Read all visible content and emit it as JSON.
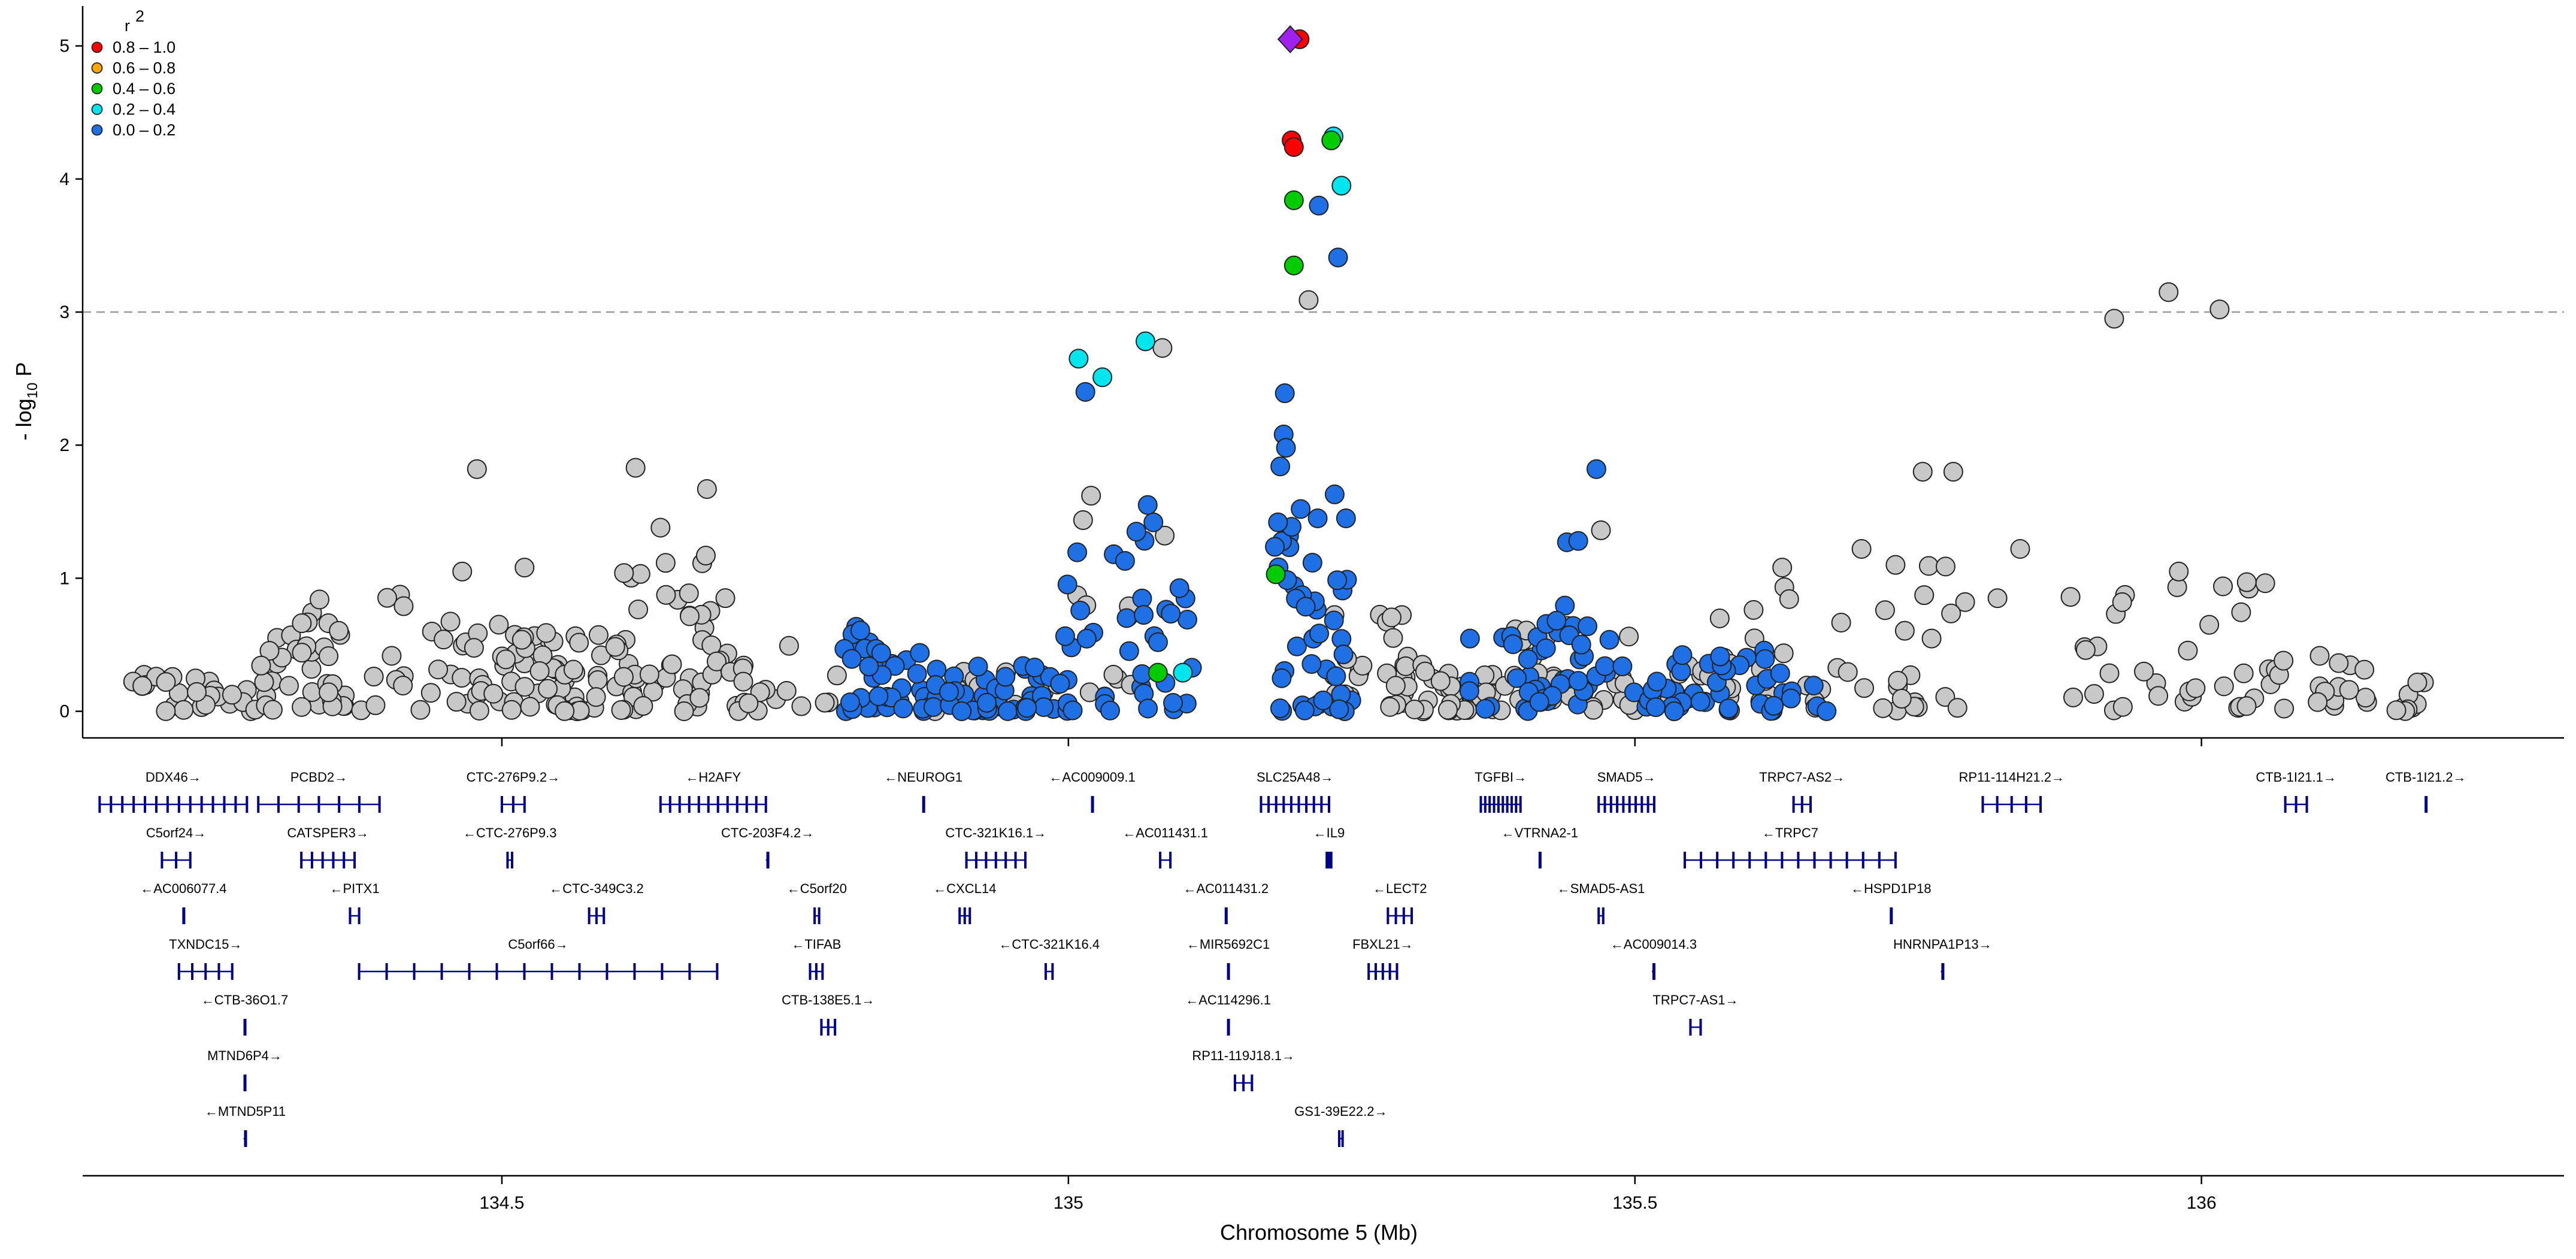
{
  "chart_data": {
    "type": "scatter",
    "title": "",
    "xlabel": "Chromosome 5 (Mb)",
    "ylabel": "- log10 P",
    "ylabel_main": "- log",
    "ylabel_sub": "10",
    "ylabel_end": " P",
    "xlim": [
      134.13,
      136.32
    ],
    "ylim": [
      -0.2,
      5.3
    ],
    "xticks": [
      134.5,
      135,
      135.5,
      136
    ],
    "xtick_labels": [
      "134.5",
      "135",
      "135.5",
      "136"
    ],
    "yticks": [
      0,
      1,
      2,
      3,
      4,
      5
    ],
    "ytick_labels": [
      "0",
      "1",
      "2",
      "3",
      "4",
      "5"
    ],
    "threshold": 3,
    "legend": {
      "title": "r",
      "title_sup": "2",
      "items": [
        {
          "label": "0.8 – 1.0",
          "color": "#ff0000"
        },
        {
          "label": "0.6 – 0.8",
          "color": "#ffa500"
        },
        {
          "label": "0.4 – 0.6",
          "color": "#00cc00"
        },
        {
          "label": "0.2 – 0.4",
          "color": "#00e5ee"
        },
        {
          "label": "0.0 – 0.2",
          "color": "#1f6fe5"
        }
      ]
    },
    "colors": {
      "gray": "#c8c8c8",
      "blue": "#1f6fe5",
      "cyan": "#00e5ee",
      "green": "#00cc00",
      "red": "#ff0000",
      "lead": "#a020f0",
      "gene": "#00008b"
    },
    "lead_snp": {
      "x": 135.2,
      "y": 5.05
    },
    "highlighted_points": [
      {
        "x": 135.204,
        "y": 5.05,
        "group": "red"
      },
      {
        "x": 135.197,
        "y": 4.29,
        "group": "red"
      },
      {
        "x": 135.199,
        "y": 4.24,
        "group": "red"
      },
      {
        "x": 135.234,
        "y": 4.32,
        "group": "cyan"
      },
      {
        "x": 135.232,
        "y": 4.29,
        "group": "green"
      },
      {
        "x": 135.241,
        "y": 3.95,
        "group": "cyan"
      },
      {
        "x": 135.199,
        "y": 3.84,
        "group": "green"
      },
      {
        "x": 135.221,
        "y": 3.8,
        "group": "blue"
      },
      {
        "x": 135.238,
        "y": 3.41,
        "group": "blue"
      },
      {
        "x": 135.199,
        "y": 3.35,
        "group": "green"
      },
      {
        "x": 135.212,
        "y": 3.09,
        "group": "gray"
      },
      {
        "x": 135.009,
        "y": 2.65,
        "group": "cyan"
      },
      {
        "x": 135.015,
        "y": 2.4,
        "group": "blue"
      },
      {
        "x": 135.03,
        "y": 2.51,
        "group": "cyan"
      },
      {
        "x": 135.068,
        "y": 2.78,
        "group": "cyan"
      },
      {
        "x": 135.083,
        "y": 2.73,
        "group": "gray"
      },
      {
        "x": 135.191,
        "y": 2.39,
        "group": "blue"
      },
      {
        "x": 135.19,
        "y": 2.08,
        "group": "blue"
      },
      {
        "x": 135.192,
        "y": 1.98,
        "group": "blue"
      },
      {
        "x": 135.187,
        "y": 1.84,
        "group": "blue"
      },
      {
        "x": 135.183,
        "y": 1.03,
        "group": "green"
      },
      {
        "x": 135.079,
        "y": 0.29,
        "group": "green"
      },
      {
        "x": 135.101,
        "y": 0.29,
        "group": "cyan"
      },
      {
        "x": 134.478,
        "y": 1.82,
        "group": "gray"
      },
      {
        "x": 134.618,
        "y": 1.83,
        "group": "gray"
      },
      {
        "x": 134.681,
        "y": 1.67,
        "group": "gray"
      },
      {
        "x": 135.466,
        "y": 1.82,
        "group": "blue"
      },
      {
        "x": 135.754,
        "y": 1.8,
        "group": "gray"
      },
      {
        "x": 135.781,
        "y": 1.8,
        "group": "gray"
      },
      {
        "x": 135.923,
        "y": 2.95,
        "group": "gray"
      },
      {
        "x": 135.971,
        "y": 3.15,
        "group": "gray"
      },
      {
        "x": 136.016,
        "y": 3.02,
        "group": "gray"
      }
    ],
    "series": [
      {
        "name": "0.0 – 0.2",
        "color": "blue",
        "count": 210
      },
      {
        "name": "gray",
        "color": "gray",
        "count": 420
      }
    ]
  },
  "genes": [
    {
      "name": "DDX46→",
      "start": 134.145,
      "end": 134.275,
      "row": 0,
      "exons": 14
    },
    {
      "name": "C5orf24→",
      "start": 134.2,
      "end": 134.225,
      "row": 1,
      "exons": 3
    },
    {
      "name": "←AC006077.4",
      "start": 134.218,
      "end": 134.22,
      "row": 2,
      "exons": 1
    },
    {
      "name": "TXNDC15→",
      "start": 134.215,
      "end": 134.262,
      "row": 3,
      "exons": 5
    },
    {
      "name": "←CTB-36O1.7",
      "start": 134.272,
      "end": 134.274,
      "row": 4,
      "exons": 1
    },
    {
      "name": "MTND6P4→",
      "start": 134.272,
      "end": 134.274,
      "row": 5,
      "exons": 1
    },
    {
      "name": "←MTND5P11",
      "start": 134.272,
      "end": 134.275,
      "row": 6,
      "exons": 1
    },
    {
      "name": "PCBD2→",
      "start": 134.285,
      "end": 134.392,
      "row": 0,
      "exons": 7
    },
    {
      "name": "CATSPER3→",
      "start": 134.323,
      "end": 134.37,
      "row": 1,
      "exons": 6
    },
    {
      "name": "←PITX1",
      "start": 134.366,
      "end": 134.374,
      "row": 2,
      "exons": 2
    },
    {
      "name": "C5orf66→",
      "start": 134.374,
      "end": 134.69,
      "row": 3,
      "exons": 14
    },
    {
      "name": "CTC-276P9.2→",
      "start": 134.5,
      "end": 134.52,
      "row": 0,
      "exons": 3
    },
    {
      "name": "←CTC-276P9.3",
      "start": 134.505,
      "end": 134.509,
      "row": 1,
      "exons": 2
    },
    {
      "name": "←CTC-349C3.2",
      "start": 134.577,
      "end": 134.59,
      "row": 2,
      "exons": 3
    },
    {
      "name": "←H2AFY",
      "start": 134.64,
      "end": 134.733,
      "row": 0,
      "exons": 12
    },
    {
      "name": "CTC-203F4.2→",
      "start": 134.733,
      "end": 134.736,
      "row": 1,
      "exons": 1
    },
    {
      "name": "←C5orf20",
      "start": 134.776,
      "end": 134.78,
      "row": 2,
      "exons": 2
    },
    {
      "name": "←TIFAB",
      "start": 134.772,
      "end": 134.783,
      "row": 3,
      "exons": 3
    },
    {
      "name": "CTB-138E5.1→",
      "start": 134.782,
      "end": 134.794,
      "row": 4,
      "exons": 3
    },
    {
      "name": "←NEUROG1",
      "start": 134.871,
      "end": 134.873,
      "row": 0,
      "exons": 1
    },
    {
      "name": "CTC-321K16.1→",
      "start": 134.91,
      "end": 134.962,
      "row": 1,
      "exons": 7
    },
    {
      "name": "←CXCL14",
      "start": 134.904,
      "end": 134.913,
      "row": 2,
      "exons": 3
    },
    {
      "name": "←CTC-321K16.4",
      "start": 134.98,
      "end": 134.986,
      "row": 3,
      "exons": 2
    },
    {
      "name": "←AC009009.1",
      "start": 135.02,
      "end": 135.022,
      "row": 0,
      "exons": 1
    },
    {
      "name": "←AC011431.1",
      "start": 135.081,
      "end": 135.09,
      "row": 1,
      "exons": 2
    },
    {
      "name": "←AC011431.2",
      "start": 135.138,
      "end": 135.14,
      "row": 2,
      "exons": 1
    },
    {
      "name": "←MIR5692C1",
      "start": 135.14,
      "end": 135.142,
      "row": 3,
      "exons": 1
    },
    {
      "name": "←AC114296.1",
      "start": 135.14,
      "end": 135.142,
      "row": 4,
      "exons": 1
    },
    {
      "name": "RP11-119J18.1→",
      "start": 135.147,
      "end": 135.162,
      "row": 5,
      "exons": 3
    },
    {
      "name": "SLC25A48→",
      "start": 135.17,
      "end": 135.23,
      "row": 0,
      "exons": 10
    },
    {
      "name": "←IL9",
      "start": 135.228,
      "end": 135.232,
      "row": 1,
      "exons": 3
    },
    {
      "name": "←LECT2",
      "start": 135.282,
      "end": 135.303,
      "row": 2,
      "exons": 4
    },
    {
      "name": "FBXL21→",
      "start": 135.265,
      "end": 135.29,
      "row": 3,
      "exons": 5
    },
    {
      "name": "GS1-39E22.2→",
      "start": 135.239,
      "end": 135.242,
      "row": 6,
      "exons": 2
    },
    {
      "name": "TGFBI→",
      "start": 135.364,
      "end": 135.399,
      "row": 0,
      "exons": 10
    },
    {
      "name": "←VTRNA2-1",
      "start": 135.415,
      "end": 135.417,
      "row": 1,
      "exons": 1
    },
    {
      "name": "←SMAD5-AS1",
      "start": 135.468,
      "end": 135.472,
      "row": 2,
      "exons": 2
    },
    {
      "name": "SMAD5→",
      "start": 135.468,
      "end": 135.517,
      "row": 0,
      "exons": 10
    },
    {
      "name": "←AC009014.3",
      "start": 135.515,
      "end": 135.518,
      "row": 3,
      "exons": 1
    },
    {
      "name": "TRPC7-AS1→",
      "start": 135.549,
      "end": 135.558,
      "row": 4,
      "exons": 2
    },
    {
      "name": "TRPC7-AS2→",
      "start": 135.64,
      "end": 135.655,
      "row": 0,
      "exons": 3
    },
    {
      "name": "←TRPC7",
      "start": 135.544,
      "end": 135.73,
      "row": 1,
      "exons": 14
    },
    {
      "name": "←HSPD1P18",
      "start": 135.725,
      "end": 135.727,
      "row": 2,
      "exons": 1
    },
    {
      "name": "HNRNPA1P13→",
      "start": 135.77,
      "end": 135.773,
      "row": 3,
      "exons": 1
    },
    {
      "name": "RP11-114H21.2→",
      "start": 135.807,
      "end": 135.858,
      "row": 0,
      "exons": 5
    },
    {
      "name": "CTB-1I21.1→",
      "start": 136.074,
      "end": 136.093,
      "row": 0,
      "exons": 3
    },
    {
      "name": "CTB-1I21.2→",
      "start": 136.197,
      "end": 136.199,
      "row": 0,
      "exons": 1
    }
  ]
}
